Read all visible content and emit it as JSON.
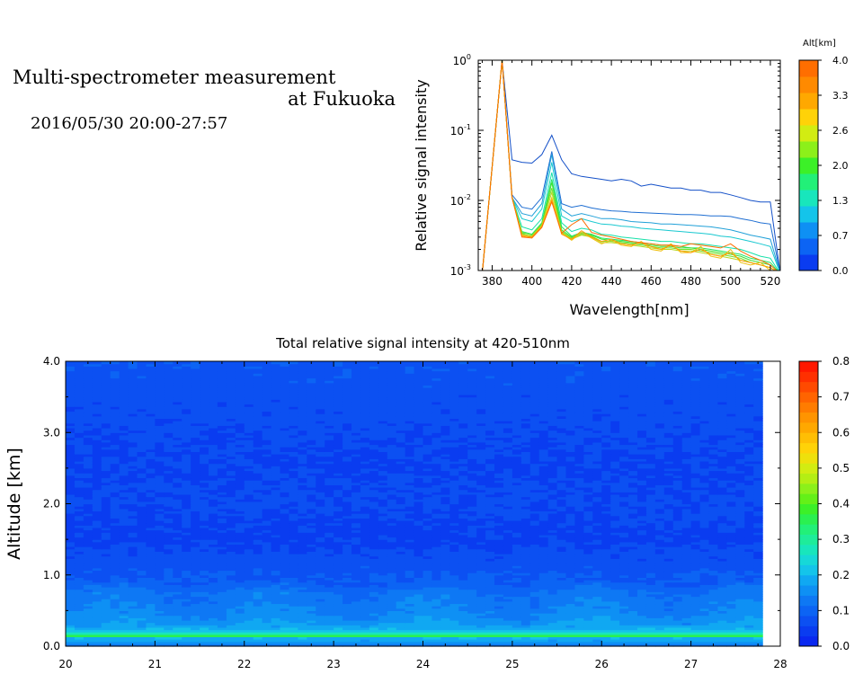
{
  "header": {
    "title_line1": "Multi-spectrometer measurement",
    "title_line2": "at Fukuoka",
    "datetime": "2016/05/30 20:00-27:57"
  },
  "chart_data": [
    {
      "type": "line",
      "title": "",
      "xlabel": "Wavelength[nm]",
      "ylabel": "Relative signal intensity",
      "yscale": "log",
      "xlim": [
        373,
        525
      ],
      "ylim": [
        0.001,
        1
      ],
      "xticks": [
        380,
        400,
        420,
        440,
        460,
        480,
        500,
        520
      ],
      "yticks": [
        {
          "value": 0.001,
          "base": "10",
          "exp": "-3"
        },
        {
          "value": 0.01,
          "base": "10",
          "exp": "-2"
        },
        {
          "value": 0.1,
          "base": "10",
          "exp": "-1"
        },
        {
          "value": 1,
          "base": "10",
          "exp": "0"
        }
      ],
      "x": [
        375,
        385,
        390,
        395,
        400,
        405,
        410,
        415,
        420,
        425,
        430,
        435,
        440,
        445,
        450,
        455,
        460,
        465,
        470,
        475,
        480,
        485,
        490,
        495,
        500,
        505,
        510,
        515,
        520,
        525
      ],
      "colorbar": {
        "label": "Alt[km]",
        "ticks": [
          "0.0",
          "0.7",
          "1.3",
          "2.0",
          "2.6",
          "3.3",
          "4.0"
        ],
        "colors": [
          "#0a3cf0",
          "#0c64f4",
          "#0e90f4",
          "#14c4ea",
          "#18e6bc",
          "#22f078",
          "#3cf028",
          "#8cf01a",
          "#d2ec12",
          "#ffd208",
          "#ffa800",
          "#ff8a00",
          "#ff6e00"
        ]
      },
      "grid": false,
      "series": [
        {
          "alt": 0.0,
          "color": "#1450c8",
          "values": [
            0.0009,
            1.0,
            0.038,
            0.035,
            0.034,
            0.045,
            0.085,
            0.038,
            0.024,
            0.022,
            0.021,
            0.02,
            0.019,
            0.02,
            0.019,
            0.016,
            0.017,
            0.016,
            0.015,
            0.015,
            0.014,
            0.014,
            0.013,
            0.013,
            0.012,
            0.011,
            0.01,
            0.0095,
            0.0095,
            0.0009
          ]
        },
        {
          "alt": 0.35,
          "color": "#1e6ed2",
          "values": [
            0.0009,
            1.0,
            0.012,
            0.008,
            0.0075,
            0.011,
            0.05,
            0.009,
            0.008,
            0.0085,
            0.0078,
            0.0074,
            0.0071,
            0.007,
            0.0068,
            0.0067,
            0.0066,
            0.0065,
            0.0064,
            0.0063,
            0.0063,
            0.0062,
            0.006,
            0.006,
            0.0059,
            0.0055,
            0.0052,
            0.0048,
            0.0046,
            0.0009
          ]
        },
        {
          "alt": 0.7,
          "color": "#20a0d8",
          "values": [
            0.0009,
            1.0,
            0.011,
            0.0065,
            0.006,
            0.009,
            0.045,
            0.0075,
            0.006,
            0.0065,
            0.006,
            0.0055,
            0.0055,
            0.0053,
            0.005,
            0.0049,
            0.0048,
            0.0046,
            0.0046,
            0.0045,
            0.0044,
            0.0043,
            0.0042,
            0.004,
            0.0038,
            0.0035,
            0.0032,
            0.003,
            0.0028,
            0.0009
          ]
        },
        {
          "alt": 1.0,
          "color": "#18c8d0",
          "values": [
            0.0009,
            1.0,
            0.011,
            0.0055,
            0.005,
            0.0075,
            0.035,
            0.006,
            0.005,
            0.0055,
            0.005,
            0.0046,
            0.0045,
            0.0043,
            0.0042,
            0.004,
            0.0039,
            0.0038,
            0.0037,
            0.0036,
            0.0035,
            0.0034,
            0.0033,
            0.0031,
            0.003,
            0.0028,
            0.0026,
            0.0024,
            0.0022,
            0.0009
          ]
        },
        {
          "alt": 1.3,
          "color": "#16e0a8",
          "values": [
            0.0009,
            1.0,
            0.011,
            0.0042,
            0.0038,
            0.0055,
            0.025,
            0.0048,
            0.0036,
            0.004,
            0.0038,
            0.0033,
            0.0032,
            0.003,
            0.0029,
            0.0028,
            0.0027,
            0.0026,
            0.0026,
            0.0025,
            0.0024,
            0.0024,
            0.0023,
            0.0022,
            0.0021,
            0.002,
            0.0018,
            0.0016,
            0.0015,
            0.0009
          ]
        },
        {
          "alt": 1.6,
          "color": "#22e660",
          "values": [
            0.0009,
            1.0,
            0.011,
            0.0036,
            0.0033,
            0.0048,
            0.02,
            0.0042,
            0.0031,
            0.0035,
            0.0033,
            0.0029,
            0.0028,
            0.0027,
            0.0026,
            0.0025,
            0.0024,
            0.0023,
            0.0023,
            0.0022,
            0.0021,
            0.0021,
            0.002,
            0.0019,
            0.0018,
            0.0017,
            0.0015,
            0.0014,
            0.0013,
            0.0009
          ]
        },
        {
          "alt": 2.0,
          "color": "#40e030",
          "values": [
            0.0009,
            1.0,
            0.011,
            0.0034,
            0.003,
            0.0045,
            0.018,
            0.0038,
            0.003,
            0.0034,
            0.0032,
            0.0028,
            0.0027,
            0.0026,
            0.0025,
            0.0024,
            0.0023,
            0.0022,
            0.0022,
            0.0021,
            0.0021,
            0.002,
            0.0019,
            0.0018,
            0.0017,
            0.0016,
            0.0014,
            0.0013,
            0.0012,
            0.0009
          ]
        },
        {
          "alt": 2.3,
          "color": "#70e028",
          "values": [
            0.0009,
            1.0,
            0.011,
            0.0035,
            0.0032,
            0.0046,
            0.015,
            0.0036,
            0.0029,
            0.0033,
            0.0031,
            0.0026,
            0.0026,
            0.0025,
            0.0024,
            0.0023,
            0.0022,
            0.0021,
            0.0021,
            0.002,
            0.002,
            0.0019,
            0.0018,
            0.0017,
            0.0016,
            0.0015,
            0.0013,
            0.0012,
            0.0011,
            0.0009
          ]
        },
        {
          "alt": 2.6,
          "color": "#b8d820",
          "values": [
            0.0009,
            1.0,
            0.011,
            0.0033,
            0.0031,
            0.0044,
            0.013,
            0.0035,
            0.0028,
            0.0032,
            0.003,
            0.0025,
            0.0025,
            0.0024,
            0.0023,
            0.0022,
            0.0021,
            0.002,
            0.002,
            0.0019,
            0.0019,
            0.0018,
            0.0017,
            0.0016,
            0.0015,
            0.0014,
            0.0013,
            0.0012,
            0.0011,
            0.0009
          ]
        },
        {
          "alt": 3.0,
          "color": "#f0c010",
          "values": [
            0.0009,
            1.0,
            0.011,
            0.0032,
            0.003,
            0.0043,
            0.011,
            0.0034,
            0.0027,
            0.0035,
            0.0029,
            0.0024,
            0.0027,
            0.0023,
            0.0022,
            0.0026,
            0.002,
            0.0019,
            0.0024,
            0.0018,
            0.0018,
            0.0022,
            0.0016,
            0.0015,
            0.002,
            0.0013,
            0.0012,
            0.0013,
            0.001,
            0.0009
          ]
        },
        {
          "alt": 3.3,
          "color": "#ff9a00",
          "values": [
            0.0009,
            1.0,
            0.011,
            0.0031,
            0.003,
            0.0042,
            0.01,
            0.0033,
            0.0028,
            0.0037,
            0.003,
            0.0026,
            0.0028,
            0.0024,
            0.0023,
            0.0025,
            0.0022,
            0.002,
            0.0023,
            0.0019,
            0.0018,
            0.002,
            0.0017,
            0.0016,
            0.0018,
            0.0014,
            0.0013,
            0.0012,
            0.0011,
            0.0009
          ]
        },
        {
          "alt": 3.7,
          "color": "#ff6e00",
          "values": [
            0.0009,
            1.0,
            0.011,
            0.003,
            0.0029,
            0.0041,
            0.0095,
            0.0034,
            0.0045,
            0.0055,
            0.0035,
            0.0032,
            0.003,
            0.0028,
            0.0026,
            0.0025,
            0.0024,
            0.0023,
            0.0023,
            0.0022,
            0.0024,
            0.0023,
            0.0022,
            0.0021,
            0.0024,
            0.0019,
            0.0016,
            0.0014,
            0.0012,
            0.0009
          ]
        }
      ]
    },
    {
      "type": "heatmap",
      "title": "Total relative signal intensity at 420-510nm",
      "xlabel": "",
      "ylabel": "Altitude [km]",
      "xlim": [
        20,
        28
      ],
      "ylim": [
        0,
        4
      ],
      "xticks": [
        "20",
        "21",
        "22",
        "23",
        "24",
        "25",
        "26",
        "27",
        "28"
      ],
      "yticks": [
        "0.0",
        "1.0",
        "2.0",
        "3.0",
        "4.0"
      ],
      "time_range": [
        20.0,
        27.8
      ],
      "colorbar": {
        "min": 0,
        "max": 0.8,
        "ticks": [
          "0.0",
          "0.1",
          "0.2",
          "0.3",
          "0.4",
          "0.5",
          "0.6",
          "0.7",
          "0.8"
        ],
        "colors": [
          "#0a28f0",
          "#0a3cf0",
          "#0c50f2",
          "#0c64f4",
          "#0e78f4",
          "#0e90f4",
          "#10a8f2",
          "#14c4ea",
          "#16d8d8",
          "#18e6bc",
          "#1eec9a",
          "#22f078",
          "#2af050",
          "#3cf028",
          "#64f018",
          "#8cf01a",
          "#b4ee14",
          "#d2ec12",
          "#eee00c",
          "#ffd208",
          "#ffbe04",
          "#ffa800",
          "#ff9400",
          "#ff7c00",
          "#ff6400",
          "#ff4a00",
          "#ff3000",
          "#ff1800"
        ]
      },
      "profile": [
        {
          "alt": 0.0,
          "value": 0.12
        },
        {
          "alt": 0.12,
          "value": 0.2
        },
        {
          "alt": 0.15,
          "value": 0.36
        },
        {
          "alt": 0.2,
          "value": 0.22
        },
        {
          "alt": 0.3,
          "value": 0.17
        },
        {
          "alt": 0.5,
          "value": 0.14
        },
        {
          "alt": 0.75,
          "value": 0.12
        },
        {
          "alt": 0.9,
          "value": 0.09
        },
        {
          "alt": 1.2,
          "value": 0.07
        },
        {
          "alt": 1.5,
          "value": 0.05
        },
        {
          "alt": 2.0,
          "value": 0.06
        },
        {
          "alt": 2.5,
          "value": 0.055
        },
        {
          "alt": 3.0,
          "value": 0.06
        },
        {
          "alt": 3.5,
          "value": 0.07
        },
        {
          "alt": 4.0,
          "value": 0.08
        }
      ]
    }
  ]
}
